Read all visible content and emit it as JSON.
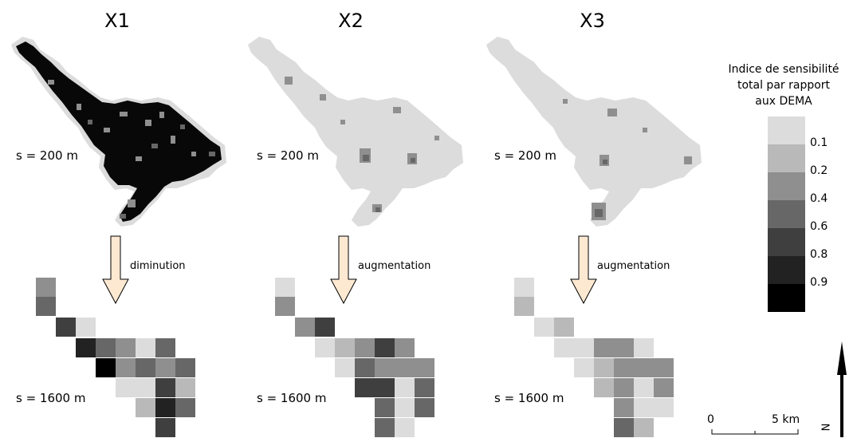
{
  "panels": [
    {
      "title": "X1",
      "fine_label": "s = 200 m",
      "coarse_label": "s = 1600 m",
      "change_label": "diminution"
    },
    {
      "title": "X2",
      "fine_label": "s = 200 m",
      "coarse_label": "s = 1600 m",
      "change_label": "augmentation"
    },
    {
      "title": "X3",
      "fine_label": "s = 200 m",
      "coarse_label": "s = 1600 m",
      "change_label": "augmentation"
    }
  ],
  "legend": {
    "title_line1": "Indice de sensibilité",
    "title_line2": "total par rapport",
    "title_line3": "aux DEMA",
    "classes": [
      {
        "label": "0.1",
        "color": "#dcdcdc"
      },
      {
        "label": "0.2",
        "color": "#b9b9b9"
      },
      {
        "label": "0.4",
        "color": "#8f8f8f"
      },
      {
        "label": "0.6",
        "color": "#676767"
      },
      {
        "label": "0.8",
        "color": "#3f3f3f"
      },
      {
        "label": "0.9",
        "color": "#222222"
      },
      {
        "label": "",
        "color": "#000000"
      }
    ]
  },
  "scalebar": {
    "start": "0",
    "end": "5 km"
  },
  "north_label": "N",
  "arrow_fill": "#fde9d2"
}
